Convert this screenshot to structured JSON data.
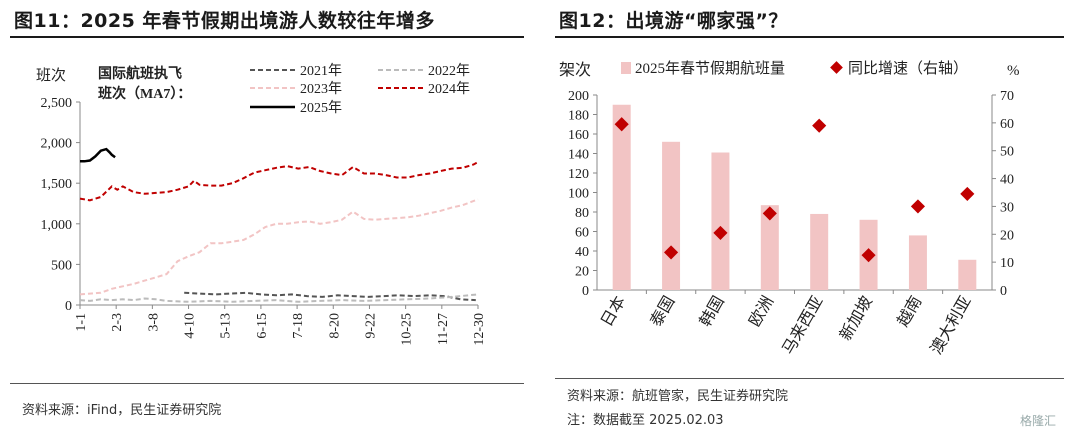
{
  "left": {
    "title": "图11：2025 年春节假期出境游人数较往年增多",
    "source": "资料来源：iFind，民生证券研究院",
    "chart_data": {
      "type": "line",
      "ylabel": "班次",
      "annotation": "国际航班执飞班次（MA7）：",
      "ylim": [
        0,
        2500
      ],
      "y_ticks": [
        "0",
        "500",
        "1,000",
        "1,500",
        "2,000",
        "2,500"
      ],
      "x_ticks": [
        "1-1",
        "2-3",
        "3-8",
        "4-10",
        "5-13",
        "6-15",
        "7-18",
        "8-20",
        "9-22",
        "10-25",
        "11-27",
        "12-30"
      ],
      "grid": false,
      "legend": "top",
      "series": [
        {
          "name": "2021年",
          "color": "#555555",
          "dash": "dash",
          "x": [
            96,
            110,
            124,
            138,
            152,
            166,
            180,
            194,
            208,
            222,
            236,
            250,
            264,
            278,
            292,
            306,
            320,
            334,
            348,
            362
          ],
          "y": [
            150,
            140,
            130,
            140,
            150,
            130,
            120,
            130,
            110,
            100,
            120,
            110,
            100,
            110,
            120,
            110,
            120,
            110,
            70,
            60
          ]
        },
        {
          "name": "2022年",
          "color": "#bbbbbb",
          "dash": "dash",
          "x": [
            1,
            10,
            20,
            30,
            40,
            50,
            60,
            70,
            80,
            100,
            120,
            140,
            160,
            180,
            200,
            220,
            240,
            260,
            280,
            300,
            320,
            340,
            364
          ],
          "y": [
            60,
            50,
            70,
            60,
            70,
            60,
            80,
            70,
            50,
            40,
            50,
            40,
            50,
            60,
            40,
            50,
            60,
            50,
            60,
            70,
            80,
            100,
            130
          ]
        },
        {
          "name": "2023年",
          "color": "#f2c4c4",
          "dash": "dash",
          "x": [
            1,
            10,
            20,
            30,
            40,
            50,
            60,
            70,
            80,
            90,
            100,
            110,
            120,
            130,
            140,
            150,
            160,
            170,
            180,
            190,
            200,
            210,
            220,
            230,
            240,
            250,
            260,
            270,
            280,
            290,
            300,
            310,
            320,
            330,
            340,
            350,
            364
          ],
          "y": [
            130,
            140,
            150,
            200,
            230,
            260,
            300,
            340,
            380,
            540,
            600,
            650,
            760,
            760,
            780,
            800,
            870,
            960,
            1000,
            1000,
            1020,
            1030,
            1000,
            1020,
            1050,
            1150,
            1060,
            1050,
            1060,
            1070,
            1080,
            1100,
            1130,
            1160,
            1200,
            1230,
            1300
          ]
        },
        {
          "name": "2024年",
          "color": "#c00000",
          "dash": "dash",
          "x": [
            1,
            10,
            20,
            30,
            35,
            40,
            50,
            60,
            70,
            80,
            90,
            100,
            105,
            110,
            120,
            130,
            140,
            150,
            160,
            170,
            180,
            190,
            200,
            210,
            220,
            230,
            240,
            250,
            260,
            270,
            280,
            290,
            300,
            310,
            320,
            330,
            340,
            350,
            360,
            364
          ],
          "y": [
            1310,
            1290,
            1330,
            1460,
            1420,
            1460,
            1390,
            1370,
            1380,
            1390,
            1420,
            1460,
            1530,
            1480,
            1470,
            1470,
            1500,
            1560,
            1630,
            1660,
            1690,
            1710,
            1680,
            1700,
            1650,
            1620,
            1600,
            1700,
            1620,
            1620,
            1600,
            1570,
            1570,
            1600,
            1620,
            1650,
            1680,
            1690,
            1730,
            1760
          ]
        },
        {
          "name": "2025年",
          "color": "#000000",
          "dash": "solid",
          "x": [
            1,
            5,
            10,
            15,
            20,
            25,
            28,
            30,
            33
          ],
          "y": [
            1770,
            1770,
            1780,
            1830,
            1900,
            1920,
            1880,
            1850,
            1820
          ]
        }
      ]
    }
  },
  "right": {
    "title": "图12：出境游“哪家强”？",
    "source": "资料来源：航班管家，民生证券研究院",
    "note": "注：数据截至 2025.02.03",
    "chart_data": {
      "type": "bar",
      "ylabel_left": "架次",
      "ylabel_right": "%",
      "ylim_left": [
        0,
        200
      ],
      "ylim_right": [
        0,
        70
      ],
      "y_ticks_left": [
        "0",
        "20",
        "40",
        "60",
        "80",
        "100",
        "120",
        "140",
        "160",
        "180",
        "200"
      ],
      "y_ticks_right": [
        "0",
        "10",
        "20",
        "30",
        "40",
        "50",
        "60",
        "70"
      ],
      "categories": [
        "日本",
        "泰国",
        "韩国",
        "欧洲",
        "马来西亚",
        "新加坡",
        "越南",
        "澳大利亚"
      ],
      "legend": "top",
      "series": [
        {
          "name": "2025年春节假期航班量",
          "color": "#f2c4c4",
          "type": "bar",
          "axis": "left",
          "values": [
            190,
            152,
            141,
            87,
            78,
            72,
            56,
            31
          ]
        },
        {
          "name": "同比增速（右轴）",
          "color": "#c00000",
          "type": "scatter",
          "axis": "right",
          "values": [
            59.5,
            13.5,
            20.5,
            27.5,
            59,
            12.5,
            30,
            34.5
          ]
        }
      ]
    }
  },
  "watermark": "格隆汇"
}
